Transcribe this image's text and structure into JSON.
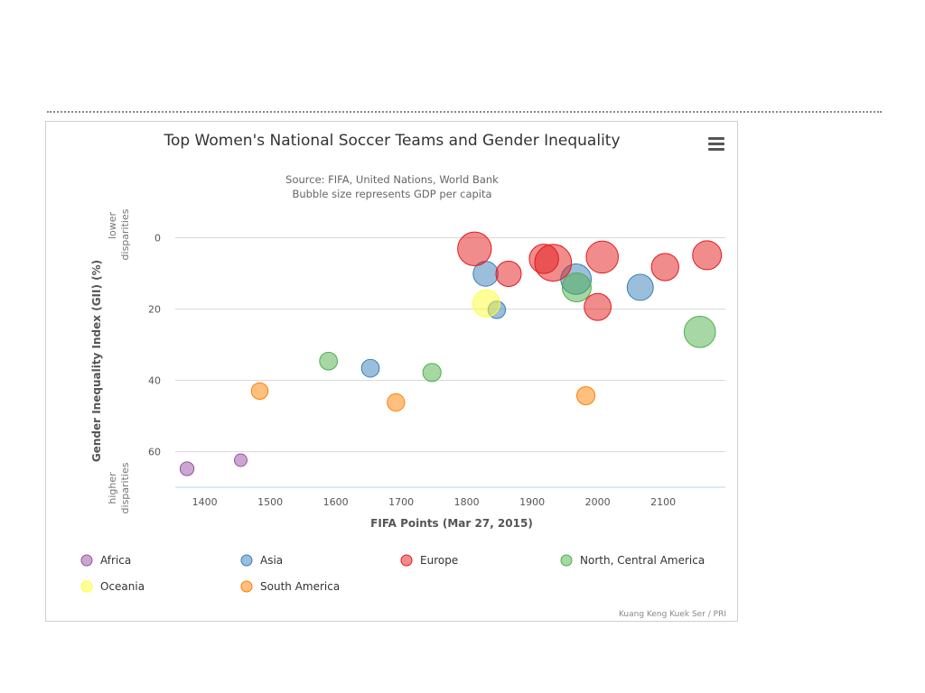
{
  "chart_data": {
    "type": "bubble",
    "title": "Top Women's National Soccer Teams and Gender Inequality",
    "subtitle_lines": [
      "Source: FIFA, United Nations, World Bank",
      "Bubble size represents GDP per capita"
    ],
    "xlabel": "FIFA Points (Mar 27, 2015)",
    "ylabel": "Gender Inequality Index (GII) (%)",
    "y_top_note": [
      "lower",
      "disparities"
    ],
    "y_bottom_note": [
      "higher",
      "disparities"
    ],
    "x_ticks": [
      1400,
      1500,
      1600,
      1700,
      1800,
      1900,
      2000,
      2100
    ],
    "y_ticks": [
      0,
      20,
      40,
      60
    ],
    "xlim": [
      1355,
      2195
    ],
    "ylim": [
      -4.7,
      70
    ],
    "y_reversed": true,
    "credit": "Kuang Keng Kuek Ser / PRI",
    "series": [
      {
        "name": "Africa",
        "color": "#984ea3",
        "points": [
          {
            "x": 1373,
            "y": 64.8,
            "size": 1.2
          },
          {
            "x": 1455,
            "y": 62.4,
            "size": 0.9
          }
        ]
      },
      {
        "name": "Asia",
        "color": "#377eb8",
        "points": [
          {
            "x": 1653,
            "y": 36.6,
            "size": 2.2
          },
          {
            "x": 1829,
            "y": 10.1,
            "size": 4.0
          },
          {
            "x": 1846,
            "y": 20.2,
            "size": 2.1
          },
          {
            "x": 1967,
            "y": 11.6,
            "size": 5.4
          },
          {
            "x": 2065,
            "y": 13.9,
            "size": 4.3
          }
        ]
      },
      {
        "name": "Europe",
        "color": "#e41a1c",
        "points": [
          {
            "x": 1812,
            "y": 3.1,
            "size": 6.2
          },
          {
            "x": 1864,
            "y": 10.1,
            "size": 4.1
          },
          {
            "x": 1918,
            "y": 5.9,
            "size": 5.1
          },
          {
            "x": 1932,
            "y": 7.0,
            "size": 7.0
          },
          {
            "x": 2007,
            "y": 5.4,
            "size": 5.8
          },
          {
            "x": 2000,
            "y": 19.4,
            "size": 4.5
          },
          {
            "x": 2103,
            "y": 8.2,
            "size": 4.6
          },
          {
            "x": 2167,
            "y": 4.9,
            "size": 5.0
          }
        ]
      },
      {
        "name": "North, Central America",
        "color": "#4daf4a",
        "points": [
          {
            "x": 1589,
            "y": 34.6,
            "size": 2.2
          },
          {
            "x": 1747,
            "y": 37.8,
            "size": 2.3
          },
          {
            "x": 1968,
            "y": 13.9,
            "size": 5.0
          },
          {
            "x": 2156,
            "y": 26.4,
            "size": 5.6
          }
        ]
      },
      {
        "name": "Oceania",
        "color": "#ffff33",
        "points": [
          {
            "x": 1830,
            "y": 18.4,
            "size": 4.5
          }
        ]
      },
      {
        "name": "South America",
        "color": "#ff7f00",
        "points": [
          {
            "x": 1484,
            "y": 43.0,
            "size": 1.9
          },
          {
            "x": 1692,
            "y": 46.2,
            "size": 2.1
          },
          {
            "x": 1982,
            "y": 44.3,
            "size": 2.3
          }
        ]
      }
    ]
  },
  "menu_icon": "hamburger-menu-icon"
}
